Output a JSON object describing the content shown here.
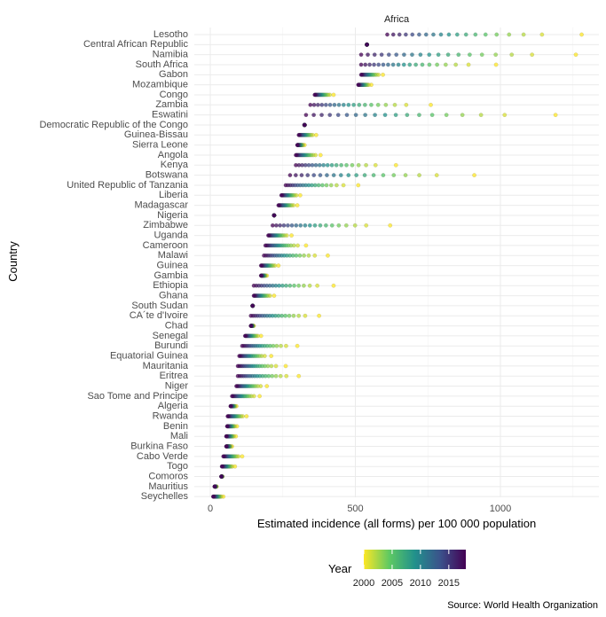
{
  "chart_data": {
    "type": "scatter",
    "facet": "Africa",
    "xlabel": "Estimated incidence (all forms) per 100 000 population",
    "ylabel": "Country",
    "xlim": [
      -50,
      1300
    ],
    "x_ticks": [
      0,
      500,
      1000
    ],
    "x_tick_labels": [
      "0",
      "500",
      "1000"
    ],
    "grid": true,
    "legend": {
      "title": "Year",
      "position": "bottom",
      "type": "colorbar",
      "range": [
        2000,
        2018
      ],
      "ticks": [
        2000,
        2005,
        2010,
        2015
      ],
      "tick_labels": [
        "2000",
        "2005",
        "2010",
        "2015"
      ],
      "palette": "viridis-reversed",
      "colors": [
        "#fde725",
        "#5ec962",
        "#21918c",
        "#3b528b",
        "#440154"
      ]
    },
    "caption": "Source: World Health Organization",
    "countries": [
      {
        "name": "Lesotho",
        "min": 610,
        "max": 1280
      },
      {
        "name": "Central African Republic",
        "min": 540,
        "max": 540
      },
      {
        "name": "Namibia",
        "min": 520,
        "max": 1260
      },
      {
        "name": "South Africa",
        "min": 520,
        "max": 985
      },
      {
        "name": "Gabon",
        "min": 520,
        "max": 595
      },
      {
        "name": "Mozambique",
        "min": 510,
        "max": 555
      },
      {
        "name": "Congo",
        "min": 360,
        "max": 425
      },
      {
        "name": "Zambia",
        "min": 345,
        "max": 760
      },
      {
        "name": "Eswatini",
        "min": 330,
        "max": 1190
      },
      {
        "name": "Democratic Republic of the Congo",
        "min": 325,
        "max": 325
      },
      {
        "name": "Guinea-Bissau",
        "min": 305,
        "max": 365
      },
      {
        "name": "Sierra Leone",
        "min": 300,
        "max": 325
      },
      {
        "name": "Angola",
        "min": 295,
        "max": 380
      },
      {
        "name": "Kenya",
        "min": 295,
        "max": 640
      },
      {
        "name": "Botswana",
        "min": 275,
        "max": 910
      },
      {
        "name": "United Republic of Tanzania",
        "min": 260,
        "max": 510
      },
      {
        "name": "Liberia",
        "min": 245,
        "max": 310
      },
      {
        "name": "Madagascar",
        "min": 235,
        "max": 300
      },
      {
        "name": "Nigeria",
        "min": 220,
        "max": 220
      },
      {
        "name": "Zimbabwe",
        "min": 215,
        "max": 620
      },
      {
        "name": "Uganda",
        "min": 200,
        "max": 280
      },
      {
        "name": "Cameroon",
        "min": 190,
        "max": 330
      },
      {
        "name": "Malawi",
        "min": 185,
        "max": 405
      },
      {
        "name": "Guinea",
        "min": 175,
        "max": 235
      },
      {
        "name": "Gambia",
        "min": 175,
        "max": 195
      },
      {
        "name": "Ethiopia",
        "min": 150,
        "max": 425
      },
      {
        "name": "Ghana",
        "min": 150,
        "max": 220
      },
      {
        "name": "South Sudan",
        "min": 146,
        "max": 146
      },
      {
        "name": "CA´te d'Ivoire",
        "min": 140,
        "max": 375
      },
      {
        "name": "Chad",
        "min": 140,
        "max": 150
      },
      {
        "name": "Senegal",
        "min": 120,
        "max": 175
      },
      {
        "name": "Burundi",
        "min": 110,
        "max": 300
      },
      {
        "name": "Equatorial Guinea",
        "min": 100,
        "max": 210
      },
      {
        "name": "Mauritania",
        "min": 95,
        "max": 260
      },
      {
        "name": "Eritrea",
        "min": 95,
        "max": 305
      },
      {
        "name": "Niger",
        "min": 90,
        "max": 195
      },
      {
        "name": "Sao Tome and Principe",
        "min": 75,
        "max": 170
      },
      {
        "name": "Algeria",
        "min": 70,
        "max": 90
      },
      {
        "name": "Rwanda",
        "min": 60,
        "max": 125
      },
      {
        "name": "Benin",
        "min": 58,
        "max": 92
      },
      {
        "name": "Mali",
        "min": 55,
        "max": 88
      },
      {
        "name": "Burkina Faso",
        "min": 55,
        "max": 75
      },
      {
        "name": "Cabo Verde",
        "min": 45,
        "max": 110
      },
      {
        "name": "Togo",
        "min": 40,
        "max": 85
      },
      {
        "name": "Comoros",
        "min": 38,
        "max": 42
      },
      {
        "name": "Mauritius",
        "min": 15,
        "max": 22
      },
      {
        "name": "Seychelles",
        "min": 10,
        "max": 45
      }
    ]
  }
}
